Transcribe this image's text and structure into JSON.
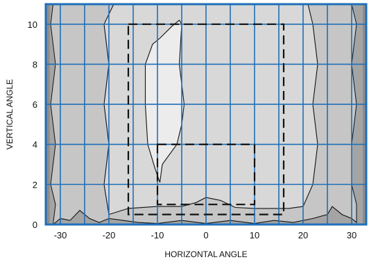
{
  "chart_data": {
    "type": "contour",
    "xlabel": "HORIZONTAL ANGLE",
    "ylabel": "VERTICAL ANGLE",
    "xlim": [
      -33,
      33
    ],
    "ylim": [
      0,
      11
    ],
    "x_ticks": [
      -30,
      -20,
      -10,
      0,
      10,
      20,
      30
    ],
    "y_ticks": [
      0,
      2,
      4,
      6,
      8,
      10
    ],
    "grid": true,
    "grid_x_step": 5,
    "grid_y_step": 2,
    "colors": {
      "background_fill": "#c6c6c6",
      "edge_bands": "#a4a4a4",
      "outer_edge": "#8c8c8c",
      "center_region": "#d8d8d8",
      "hot_spot": "#ececec",
      "grid": "#1f6fb8",
      "frame": "#1f6fb8",
      "contour_line": "#111111",
      "dashed_box": "#111111"
    },
    "regions": [
      {
        "level": "center_region",
        "outline": [
          [
            -20,
            0.5
          ],
          [
            -16,
            0.8
          ],
          [
            -10,
            0.9
          ],
          [
            -5,
            0.9
          ],
          [
            -2,
            1.1
          ],
          [
            0,
            1.35
          ],
          [
            3,
            1.2
          ],
          [
            6,
            0.85
          ],
          [
            10,
            0.8
          ],
          [
            14,
            0.8
          ],
          [
            17,
            0.8
          ],
          [
            20,
            0.9
          ],
          [
            22,
            2
          ],
          [
            23,
            4
          ],
          [
            22,
            6
          ],
          [
            23,
            8
          ],
          [
            22,
            10
          ],
          [
            21,
            11
          ],
          [
            -19,
            11
          ],
          [
            -21,
            10
          ],
          [
            -20,
            8
          ],
          [
            -21,
            6
          ],
          [
            -20,
            4
          ],
          [
            -21,
            2
          ]
        ]
      },
      {
        "level": "hot_spot",
        "outline": [
          [
            -9.5,
            2.1
          ],
          [
            -10.5,
            2.8
          ],
          [
            -12,
            4
          ],
          [
            -12.5,
            6
          ],
          [
            -12.5,
            8
          ],
          [
            -11,
            9
          ],
          [
            -9.5,
            9.3
          ],
          [
            -7,
            9.9
          ],
          [
            -6,
            10.1
          ],
          [
            -5.5,
            10.2
          ],
          [
            -5,
            10
          ],
          [
            -5.5,
            8
          ],
          [
            -4.5,
            6
          ],
          [
            -5,
            5
          ],
          [
            -6,
            4
          ],
          [
            -9,
            3
          ]
        ]
      }
    ],
    "edge_bands": {
      "left": [
        [
          -33,
          0
        ],
        [
          -31.5,
          0
        ],
        [
          -31,
          1
        ],
        [
          -32,
          2
        ],
        [
          -31,
          4
        ],
        [
          -32,
          6
        ],
        [
          -31,
          8
        ],
        [
          -32,
          10
        ],
        [
          -31.5,
          11
        ],
        [
          -33,
          11
        ]
      ],
      "right": [
        [
          33,
          0
        ],
        [
          31,
          0
        ],
        [
          31,
          1
        ],
        [
          30,
          2
        ],
        [
          30,
          4
        ],
        [
          31,
          6
        ],
        [
          30,
          8
        ],
        [
          31,
          10
        ],
        [
          30,
          11
        ],
        [
          33,
          11
        ]
      ]
    },
    "bottom_contours": [
      [
        [
          -31.5,
          0
        ],
        [
          -30,
          0.3
        ],
        [
          -28,
          0.2
        ],
        [
          -26,
          0.7
        ],
        [
          -24,
          0.3
        ],
        [
          -22,
          0.1
        ],
        [
          -20,
          0.3
        ],
        [
          -17,
          0.2
        ],
        [
          -14,
          0.1
        ],
        [
          -10,
          0.05
        ],
        [
          -5,
          0.2
        ],
        [
          0,
          0.05
        ],
        [
          5,
          0.2
        ],
        [
          10,
          0.05
        ],
        [
          14,
          0.2
        ],
        [
          18,
          0.1
        ],
        [
          22,
          0.3
        ],
        [
          25,
          0.5
        ],
        [
          26,
          0.9
        ],
        [
          28,
          0.5
        ],
        [
          30,
          0.3
        ],
        [
          31,
          0.1
        ]
      ]
    ],
    "dashed_boxes": [
      {
        "x": [
          -16,
          16
        ],
        "y": [
          0.5,
          10
        ]
      },
      {
        "x": [
          -10,
          10
        ],
        "y": [
          1,
          4
        ]
      }
    ]
  }
}
